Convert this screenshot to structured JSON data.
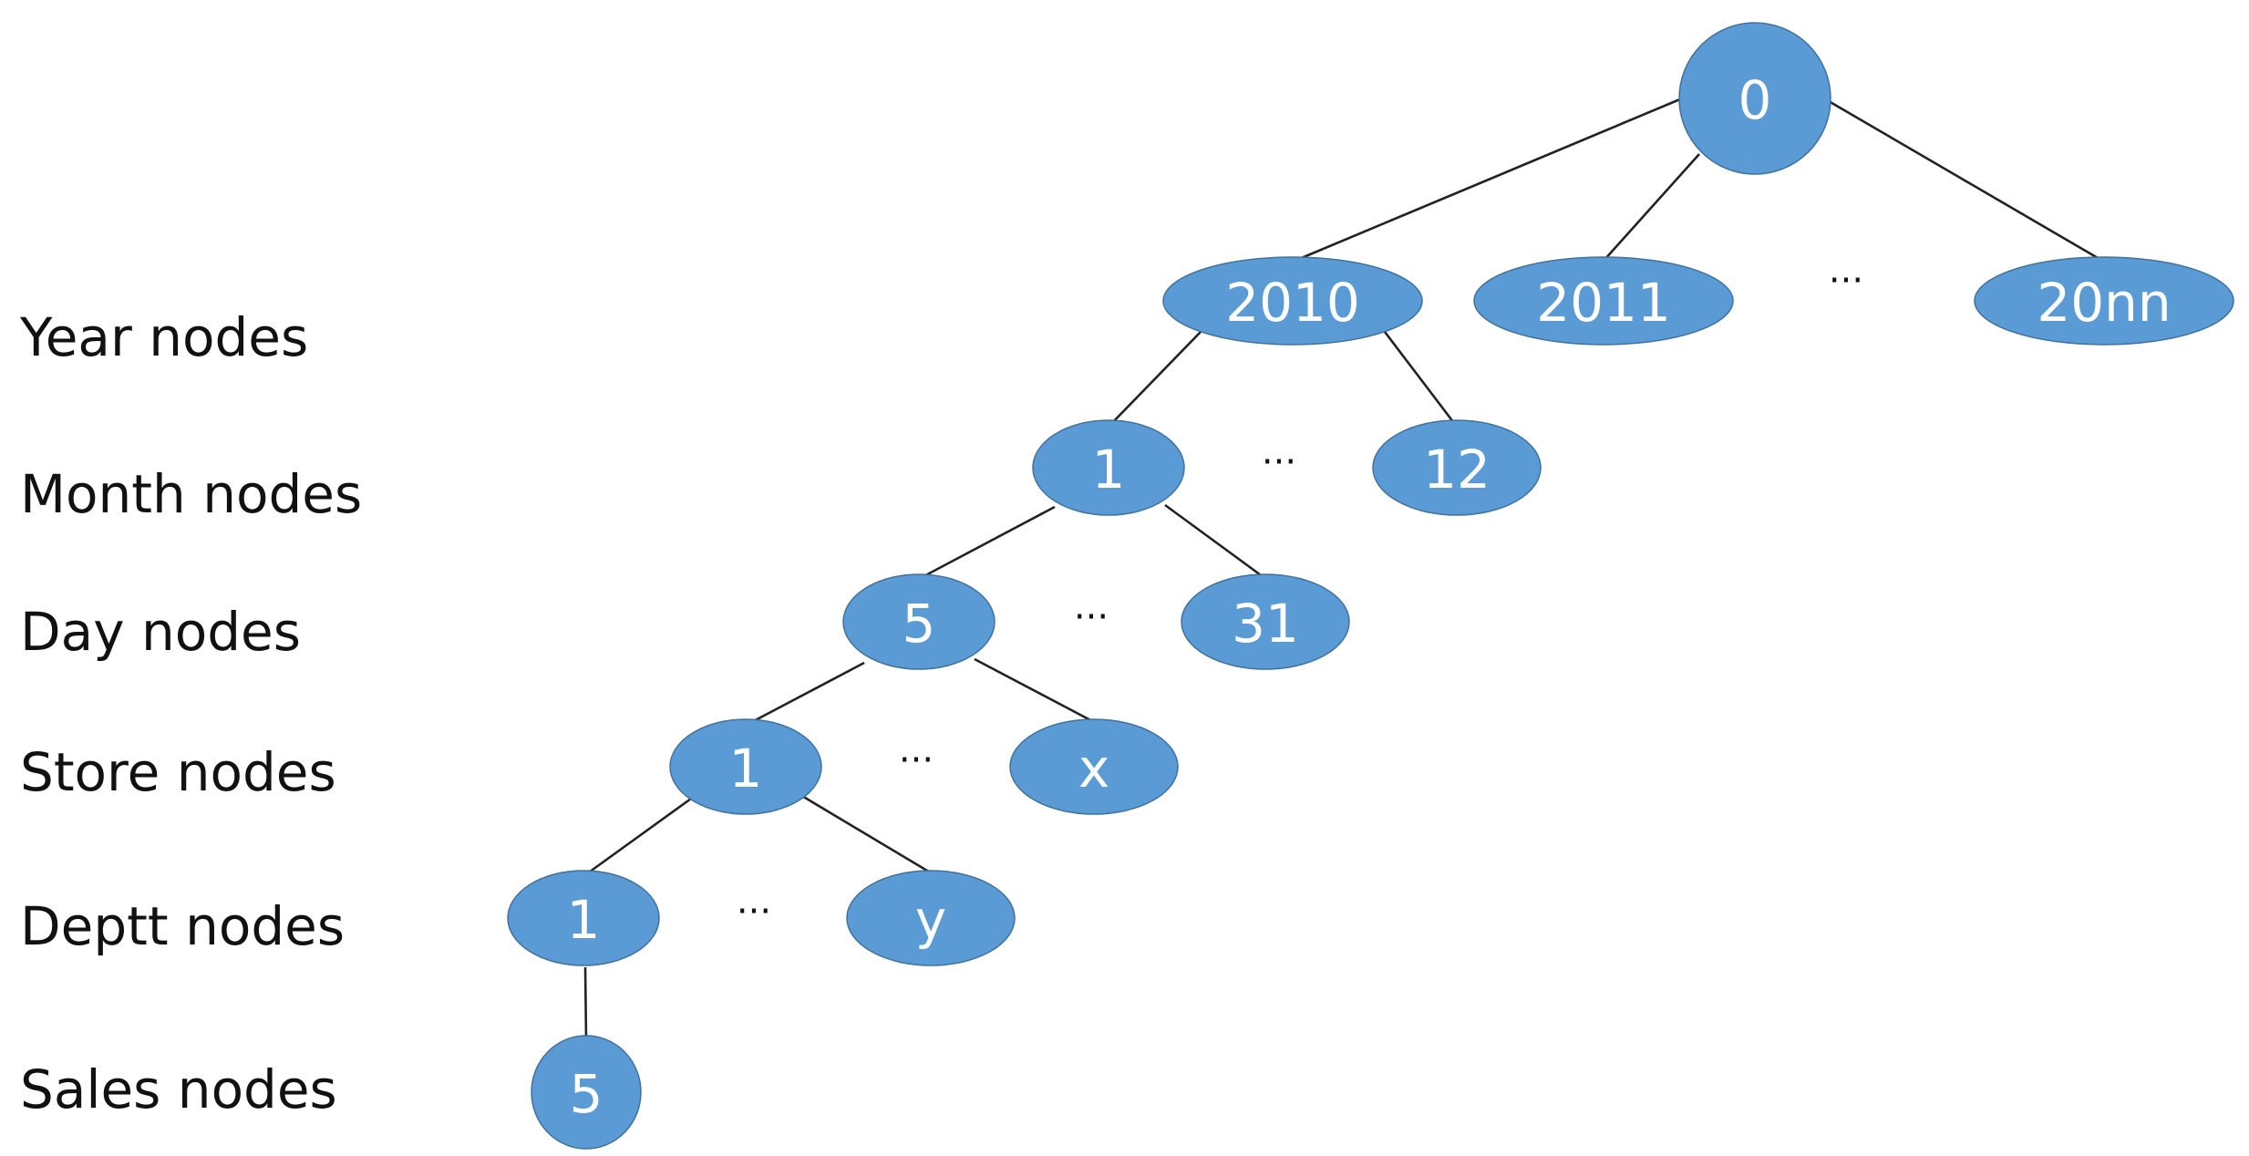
{
  "levels": [
    {
      "id": "year",
      "label": "Year nodes"
    },
    {
      "id": "month",
      "label": "Month nodes"
    },
    {
      "id": "day",
      "label": "Day nodes"
    },
    {
      "id": "store",
      "label": "Store nodes"
    },
    {
      "id": "deptt",
      "label": "Deptt nodes"
    },
    {
      "id": "sales",
      "label": "Sales nodes"
    }
  ],
  "nodes": {
    "root": "0",
    "year_2010": "2010",
    "year_2011": "2011",
    "year_20nn": "20nn",
    "month_1": "1",
    "month_12": "12",
    "day_5": "5",
    "day_31": "31",
    "store_1": "1",
    "store_x": "x",
    "deptt_1": "1",
    "deptt_y": "y",
    "sales_5": "5"
  },
  "ellipsis": "···",
  "colors": {
    "node_fill": "#5b9bd5",
    "node_stroke": "#41719c",
    "node_text": "#ffffff",
    "edge": "#222222"
  }
}
